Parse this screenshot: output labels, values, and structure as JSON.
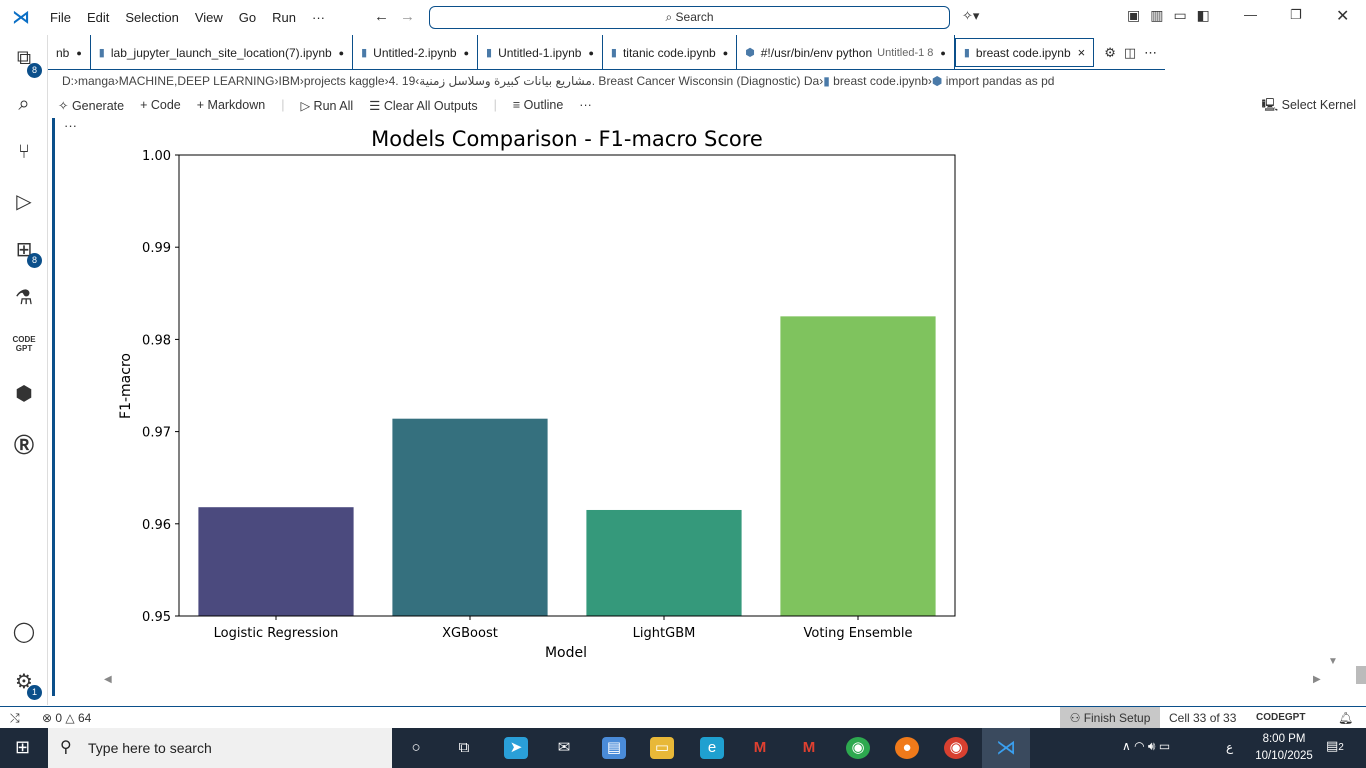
{
  "menu": [
    "File",
    "Edit",
    "Selection",
    "View",
    "Go",
    "Run",
    "···"
  ],
  "search": {
    "label": "Search"
  },
  "activity": {
    "explorer_badge": "8",
    "extensions_badge": "8",
    "settings_badge": "1",
    "codegpt": "CODE GPT"
  },
  "tabs": [
    {
      "label": "nb",
      "dirty": "●"
    },
    {
      "label": "lab_jupyter_launch_site_location(7).ipynb",
      "dirty": "●"
    },
    {
      "label": "Untitled-2.ipynb",
      "dirty": "●"
    },
    {
      "label": "Untitled-1.ipynb",
      "dirty": "●"
    },
    {
      "label": "titanic code.ipynb",
      "dirty": "●"
    },
    {
      "label": "#!/usr/bin/env python",
      "sub": "Untitled-1 8",
      "dirty": "●"
    },
    {
      "label": "breast code.ipynb",
      "dirty": "×"
    }
  ],
  "breadcrumb": [
    "D:",
    "manga",
    "MACHINE,DEEP LEARNING",
    "IBM",
    "projects kaggle",
    "4. مشاريع بيانات كبيرة وسلاسل زمنية",
    "19. Breast Cancer Wisconsin (Diagnostic) Da",
    "breast code.ipynb",
    "import pandas as pd"
  ],
  "toolbar": {
    "generate": "Generate",
    "code": "Code",
    "markdown": "Markdown",
    "run_all": "Run All",
    "clear": "Clear All Outputs",
    "outline": "Outline",
    "more": "···",
    "kernel": "Select Kernel"
  },
  "cell": {
    "more": "···"
  },
  "chart_data": {
    "type": "bar",
    "title": "Models Comparison - F1-macro Score",
    "xlabel": "Model",
    "ylabel": "F1-macro",
    "categories": [
      "Logistic Regression",
      "XGBoost",
      "LightGBM",
      "Voting Ensemble"
    ],
    "values": [
      0.9618,
      0.9714,
      0.9615,
      0.9825
    ],
    "colors": [
      "#4b4a7e",
      "#35707e",
      "#35997b",
      "#7fc35e"
    ],
    "ylim": [
      0.95,
      1.0
    ],
    "yticks": [
      "0.95",
      "0.96",
      "0.97",
      "0.98",
      "0.99",
      "1.00"
    ],
    "grid": false
  },
  "status": {
    "errors": "0",
    "warnings": "64",
    "finish": "Finish Setup",
    "cell": "Cell 33 of 33",
    "codegpt": "CODEGPT"
  },
  "taskbar": {
    "search": "Type here to search",
    "time": "8:00 PM",
    "date": "10/10/2025",
    "notif": "2",
    "lang": "ع"
  }
}
